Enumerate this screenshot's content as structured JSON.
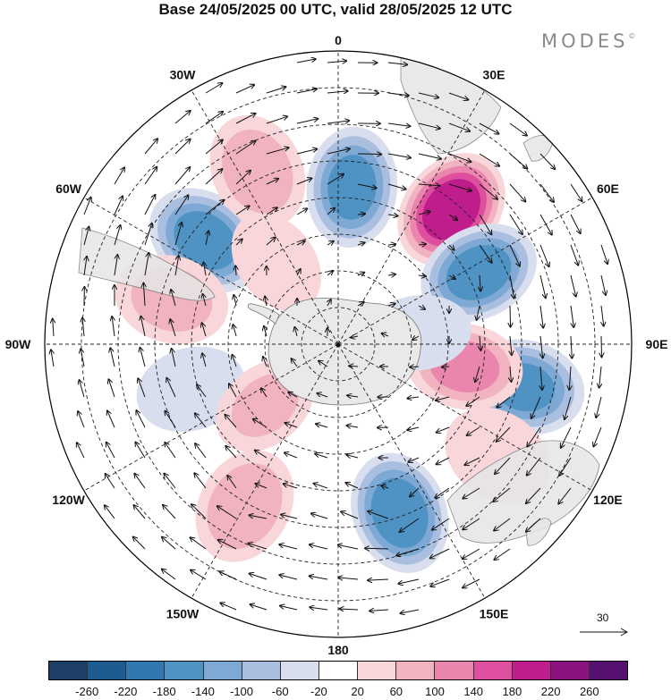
{
  "title": "Base 24/05/2025 00 UTC, valid 28/05/2025 12 UTC",
  "logo": "MODES",
  "logo_mark": "©",
  "longitude_labels": [
    {
      "text": "0",
      "lon": 0
    },
    {
      "text": "30E",
      "lon": 30
    },
    {
      "text": "60E",
      "lon": 60
    },
    {
      "text": "90E",
      "lon": 90
    },
    {
      "text": "120E",
      "lon": 120
    },
    {
      "text": "150E",
      "lon": 150
    },
    {
      "text": "180",
      "lon": 180
    },
    {
      "text": "150W",
      "lon": -150
    },
    {
      "text": "120W",
      "lon": -120
    },
    {
      "text": "90W",
      "lon": -90
    },
    {
      "text": "60W",
      "lon": -60
    },
    {
      "text": "30W",
      "lon": -30
    }
  ],
  "reference_vector_label": "30",
  "colorbar": {
    "colors": [
      "#1e3f66",
      "#1c5c91",
      "#2f78b2",
      "#4f92c4",
      "#7da9d4",
      "#aabfe0",
      "#d9deef",
      "#ffffff",
      "#f8d6da",
      "#f1b3c0",
      "#ea86ae",
      "#df4f9f",
      "#bf1c8c",
      "#8c137f",
      "#561070"
    ],
    "labels": [
      "-260",
      "-220",
      "-180",
      "-140",
      "-100",
      "-60",
      "-20",
      "20",
      "60",
      "100",
      "140",
      "180",
      "220",
      "260"
    ]
  },
  "anomaly_centers": [
    {
      "lon": -52,
      "lat": -44,
      "value": -170
    },
    {
      "lon": 5,
      "lat": -47,
      "value": -160
    },
    {
      "lon": 40,
      "lat": -42,
      "value": 220
    },
    {
      "lon": 63,
      "lat": -47,
      "value": -170
    },
    {
      "lon": 103,
      "lat": -38,
      "value": -150
    },
    {
      "lon": 100,
      "lat": -55,
      "value": 120
    },
    {
      "lon": 160,
      "lat": -41,
      "value": -180
    },
    {
      "lon": -150,
      "lat": -39,
      "value": 100
    },
    {
      "lon": -25,
      "lat": -38,
      "value": 90
    },
    {
      "lon": -75,
      "lat": -43,
      "value": 80
    },
    {
      "lon": -107,
      "lat": -48,
      "value": -60
    },
    {
      "lon": 125,
      "lat": -37,
      "value": 60
    },
    {
      "lon": -130,
      "lat": -64,
      "value": 70
    },
    {
      "lon": -37,
      "lat": -62,
      "value": 60
    },
    {
      "lon": 82,
      "lat": -68,
      "value": -60
    }
  ]
}
